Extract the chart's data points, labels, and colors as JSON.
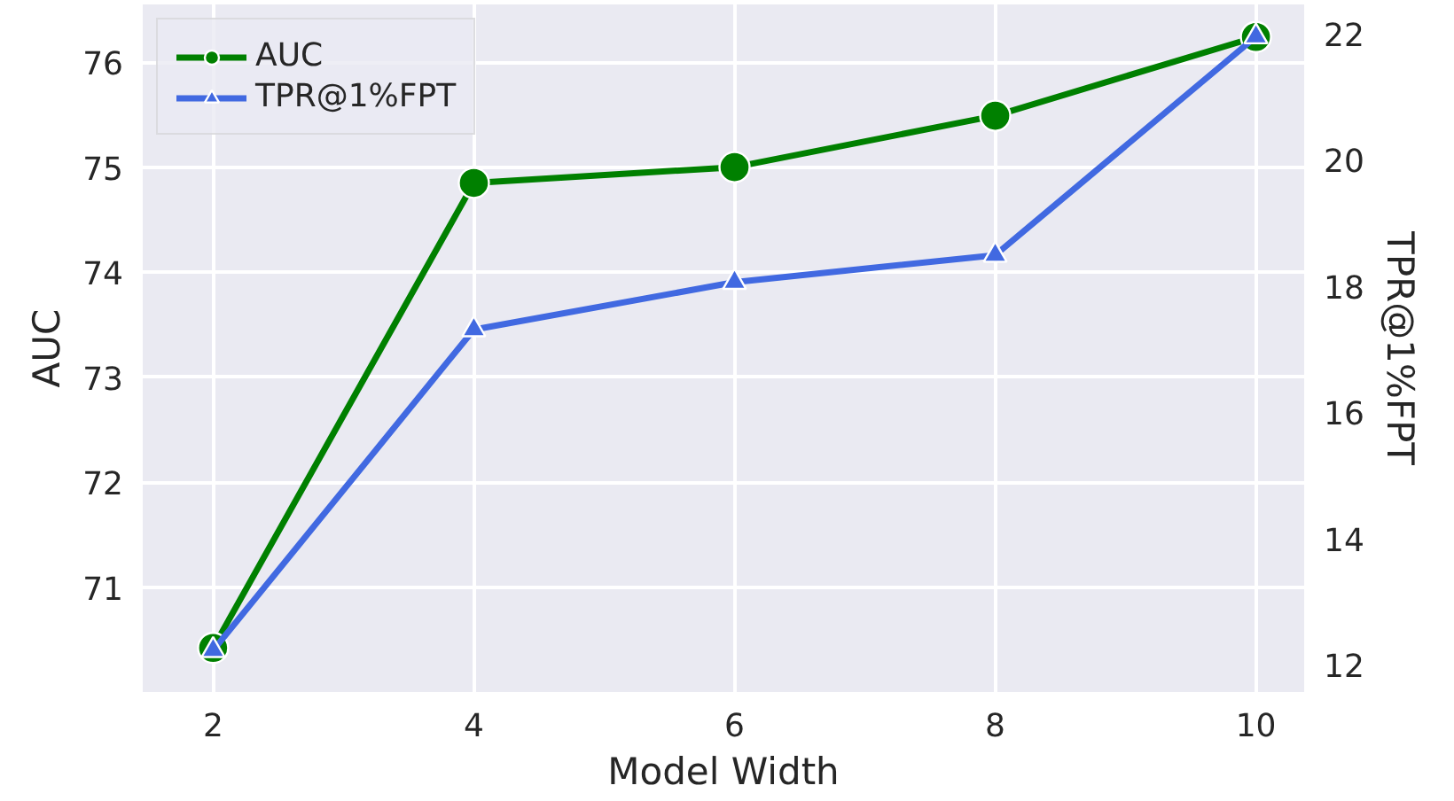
{
  "chart_data": {
    "type": "line",
    "xlabel": "Model Width",
    "ylabel": "AUC",
    "y2label": "TPR@1%FPT",
    "x": [
      2,
      4,
      6,
      8,
      10
    ],
    "series": [
      {
        "name": "AUC",
        "color": "#008000",
        "marker": "circle",
        "values": [
          70.42,
          74.85,
          75.0,
          75.49,
          76.24
        ]
      },
      {
        "name": "TPR@1%FPT",
        "color": "#4169e1",
        "marker": "triangle",
        "axis": "y2",
        "values": [
          12.23,
          17.31,
          18.06,
          18.49,
          21.95
        ]
      }
    ],
    "xlim": [
      1.46,
      10.37
    ],
    "xticks": [
      2,
      4,
      6,
      8,
      10
    ],
    "ylim": [
      70.0,
      76.55
    ],
    "yticks": [
      71,
      72,
      73,
      74,
      75,
      76
    ],
    "y2lim": [
      11.57,
      22.46
    ],
    "y2ticks": [
      12,
      14,
      16,
      18,
      20,
      22
    ],
    "grid": true,
    "legend": "top left",
    "line_style": "solid"
  }
}
